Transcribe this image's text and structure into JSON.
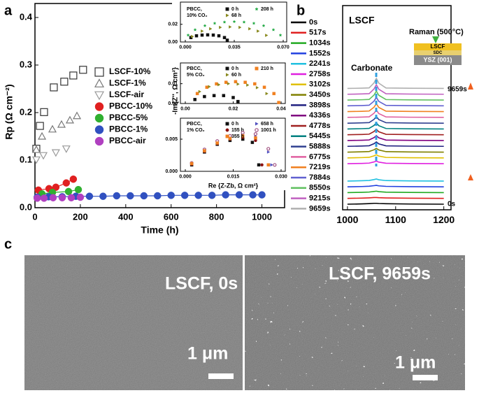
{
  "panel_labels": [
    "a",
    "b",
    "c"
  ],
  "sem": [
    {
      "caption": "LSCF, 0s",
      "scale_bar": "1 μm"
    },
    {
      "caption": "LSCF, 9659s",
      "scale_bar": "1 μm"
    }
  ],
  "chart_data": [
    {
      "type": "scatter",
      "xlabel": "Time (h)",
      "ylabel": "Rp (Ω cm⁻²)",
      "xlim": [
        0,
        1100
      ],
      "xticks": [
        0,
        200,
        400,
        600,
        800,
        1000
      ],
      "ylim": [
        0,
        0.4
      ],
      "yticks": [
        {
          "value": 0,
          "label": "0.0"
        },
        0.1,
        0.2,
        0.3,
        0.4
      ],
      "series": [
        {
          "name": "LSCF-10%",
          "color": "#333333",
          "marker": "square-open",
          "x": [
            6,
            22,
            40,
            83,
            129,
            169,
            212
          ],
          "values": [
            0.124,
            0.172,
            0.201,
            0.253,
            0.265,
            0.278,
            0.29
          ]
        },
        {
          "name": "LSCF-1%",
          "color": "#777777",
          "marker": "triangle-open",
          "x": [
            6,
            31,
            77,
            117,
            154,
            185
          ],
          "values": [
            0.122,
            0.15,
            0.165,
            0.175,
            0.184,
            0.193
          ]
        },
        {
          "name": "LSCF-air",
          "color": "#999999",
          "marker": "triangle-down-open",
          "x": [
            6,
            37,
            92,
            138
          ],
          "values": [
            0.101,
            0.11,
            0.116,
            0.124
          ]
        },
        {
          "name": "PBCC-10%",
          "color": "#e02020",
          "marker": "circle",
          "line": true,
          "x": [
            15,
            62,
            92,
            138,
            169
          ],
          "values": [
            0.037,
            0.04,
            0.043,
            0.052,
            0.06
          ]
        },
        {
          "name": "PBCC-5%",
          "color": "#30b030",
          "marker": "circle",
          "line": true,
          "x": [
            31,
            77,
            148,
            191
          ],
          "values": [
            0.029,
            0.032,
            0.034,
            0.038
          ]
        },
        {
          "name": "PBCC-1%",
          "color": "#3050c0",
          "marker": "circle",
          "line": true,
          "x": [
            10,
            60,
            120,
            180,
            240,
            300,
            360,
            420,
            480,
            540,
            600,
            660,
            720,
            780,
            840,
            900,
            960,
            1000
          ],
          "values": [
            0.022,
            0.023,
            0.023,
            0.024,
            0.024,
            0.024,
            0.025,
            0.025,
            0.025,
            0.025,
            0.026,
            0.026,
            0.026,
            0.026,
            0.027,
            0.027,
            0.027,
            0.027
          ]
        },
        {
          "name": "PBCC-air",
          "color": "#b040c0",
          "marker": "circle",
          "x": [
            10,
            40,
            80,
            120,
            160,
            200
          ],
          "values": [
            0.02,
            0.02,
            0.021,
            0.021,
            0.021,
            0.022
          ]
        }
      ]
    },
    {
      "type": "scatter",
      "legend_title": [
        "PBCC,",
        "10% CO₂"
      ],
      "xlim": [
        0,
        0.07
      ],
      "xticks": [
        {
          "value": 0,
          "label": "0.000"
        },
        0.035,
        {
          "value": 0.07,
          "label": "0.070"
        }
      ],
      "ylim": [
        0,
        0.038
      ],
      "yticks": [
        {
          "value": 0,
          "label": "0.00"
        },
        0.02
      ],
      "series": [
        {
          "name": "0 h",
          "color": "#111111",
          "marker": "square",
          "x": [
            0.004,
            0.008,
            0.012,
            0.016,
            0.02,
            0.024,
            0.028,
            0.03
          ],
          "values": [
            0.005,
            0.007,
            0.0078,
            0.008,
            0.0078,
            0.007,
            0.005,
            0.002
          ]
        },
        {
          "name": "208 h",
          "color": "#22aa44",
          "marker": "star",
          "x": [
            0.002,
            0.007,
            0.014,
            0.021,
            0.028,
            0.035,
            0.042,
            0.049,
            0.056,
            0.063,
            0.068
          ],
          "values": [
            0.0077,
            0.0138,
            0.0184,
            0.0211,
            0.0225,
            0.023,
            0.0225,
            0.0211,
            0.0184,
            0.0138,
            0.0077
          ]
        },
        {
          "name": "68 h",
          "color": "#8a8a20",
          "marker": "triangle-right",
          "x": [
            0.005,
            0.012,
            0.018,
            0.025,
            0.032,
            0.039,
            0.046,
            0.052,
            0.058
          ],
          "values": [
            0.0062,
            0.0123,
            0.0149,
            0.0165,
            0.017,
            0.0165,
            0.0149,
            0.0123,
            0.0075
          ]
        }
      ]
    },
    {
      "type": "scatter",
      "legend_title": [
        "PBCC,",
        "5% CO₂"
      ],
      "ylabel": "-Im{Z'', Ω cm²}",
      "xlim": [
        0,
        0.04
      ],
      "xticks": [
        {
          "value": 0,
          "label": "0.00"
        },
        0.02,
        0.04
      ],
      "ylim": [
        0,
        0.018
      ],
      "yticks": [
        {
          "value": 0,
          "label": "0.00"
        },
        0.01
      ],
      "series": [
        {
          "name": "0 h",
          "color": "#111111",
          "marker": "square",
          "x": [
            0.004,
            0.008,
            0.012,
            0.016,
            0.02,
            0.022
          ],
          "values": [
            0.002,
            0.0035,
            0.004,
            0.004,
            0.003,
            0.001
          ]
        },
        {
          "name": "210 h",
          "color": "#f08020",
          "marker": "square",
          "x": [
            0.005,
            0.009,
            0.013,
            0.017,
            0.021,
            0.025,
            0.029,
            0.033,
            0.037,
            0.039
          ],
          "values": [
            0.005,
            0.0082,
            0.0099,
            0.0107,
            0.011,
            0.0107,
            0.0099,
            0.0082,
            0.005,
            0.0005
          ]
        },
        {
          "name": "60 h",
          "color": "#8a8a20",
          "marker": "triangle-right",
          "x": [
            0.006,
            0.01,
            0.014,
            0.018,
            0.022,
            0.026,
            0.03,
            0.034
          ],
          "values": [
            0.006,
            0.0085,
            0.0095,
            0.01,
            0.0098,
            0.0093,
            0.008,
            0.005
          ]
        }
      ]
    },
    {
      "type": "scatter",
      "legend_title": [
        "PBCC,",
        "1% CO₂"
      ],
      "xlabel": "Re {Z-Zb, Ω cm²}",
      "xlim": [
        0,
        0.03
      ],
      "xticks": [
        {
          "value": 0,
          "label": "0.000"
        },
        0.015,
        {
          "value": 0.03,
          "label": "0.030"
        }
      ],
      "ylim": [
        0,
        0.0075
      ],
      "yticks": [
        {
          "value": 0,
          "label": "0.000"
        },
        0.005
      ],
      "series": [
        {
          "name": "0 h",
          "color": "#111111",
          "marker": "square",
          "x": [
            0.002,
            0.006,
            0.01,
            0.014,
            0.018,
            0.021,
            0.023
          ],
          "values": [
            0.001,
            0.003,
            0.0042,
            0.0048,
            0.005,
            0.0045,
            0.001
          ]
        },
        {
          "name": "658 h",
          "color": "#5050c0",
          "marker": "triangle-right",
          "x": [
            0.002,
            0.006,
            0.01,
            0.014,
            0.018,
            0.022,
            0.026,
            0.027
          ],
          "values": [
            0.0012,
            0.0032,
            0.0045,
            0.0052,
            0.0056,
            0.0054,
            0.003,
            0.001
          ]
        },
        {
          "name": "155 h",
          "color": "#8b1010",
          "marker": "circle",
          "x": [
            0.002,
            0.006,
            0.01,
            0.014,
            0.018,
            0.022,
            0.024
          ],
          "values": [
            0.0011,
            0.0031,
            0.0043,
            0.005,
            0.0053,
            0.0048,
            0.001
          ]
        },
        {
          "name": "1001 h",
          "color": "#a05080",
          "marker": "circle-open",
          "x": [
            0.002,
            0.006,
            0.01,
            0.014,
            0.018,
            0.022,
            0.026,
            0.028
          ],
          "values": [
            0.0013,
            0.0034,
            0.0047,
            0.0055,
            0.006,
            0.0058,
            0.0035,
            0.001
          ]
        },
        {
          "name": "355 h",
          "color": "#f08020",
          "marker": "square",
          "x": [
            0.002,
            0.006,
            0.01,
            0.014,
            0.018,
            0.022,
            0.026
          ],
          "values": [
            0.0012,
            0.0032,
            0.0044,
            0.0051,
            0.0055,
            0.0052,
            0.001
          ]
        }
      ]
    },
    {
      "type": "line",
      "title": "LSCF",
      "annotations": {
        "raman": "Raman (500°C)",
        "carbonate": "Carbonate",
        "layers": [
          "LSCF",
          "SDC",
          "YSZ (001)"
        ]
      },
      "xlim": [
        990,
        1215
      ],
      "xticks": [
        1000,
        1100,
        1200
      ],
      "x": [
        1000,
        1030,
        1045,
        1055,
        1060,
        1065,
        1080,
        1130,
        1200
      ],
      "series": [
        {
          "name": "0s",
          "color": "#000000",
          "values": [
            0,
            0.05,
            0.1,
            0.15,
            0.15,
            0.12,
            0.08,
            0.03,
            0
          ]
        },
        {
          "name": "517s",
          "color": "#e02020",
          "values": [
            1,
            1.05,
            1.1,
            1.15,
            1.15,
            1.12,
            1.08,
            1.03,
            1
          ]
        },
        {
          "name": "1034s",
          "color": "#22aa22",
          "values": [
            2,
            2.05,
            2.1,
            2.2,
            2.25,
            2.17,
            2.08,
            2.03,
            2
          ]
        },
        {
          "name": "1552s",
          "color": "#2040e0",
          "values": [
            3,
            3.05,
            3.1,
            3.2,
            3.25,
            3.17,
            3.08,
            3.03,
            3
          ]
        },
        {
          "name": "2241s",
          "color": "#20c0e0",
          "values": [
            4,
            4.05,
            4.1,
            4.25,
            4.35,
            4.22,
            4.08,
            4.03,
            4
          ]
        },
        {
          "name": "2758s",
          "color": "#e020e0",
          "values": [
            7,
            7.05,
            7.1,
            7.3,
            7.45,
            7.27,
            7.08,
            7.03,
            7
          ]
        },
        {
          "name": "3102s",
          "color": "#e0c000",
          "values": [
            8,
            8.05,
            8.1,
            8.35,
            8.55,
            8.32,
            8.08,
            8.03,
            8
          ]
        },
        {
          "name": "3450s",
          "color": "#808000",
          "values": [
            9,
            9.05,
            9.1,
            9.4,
            9.65,
            9.37,
            9.08,
            9.03,
            9
          ]
        },
        {
          "name": "3898s",
          "color": "#202080",
          "values": [
            10,
            10.05,
            10.1,
            10.45,
            10.75,
            10.42,
            10.08,
            10.03,
            10
          ]
        },
        {
          "name": "4336s",
          "color": "#800080",
          "values": [
            11,
            11.05,
            11.1,
            11.5,
            11.85,
            11.47,
            11.08,
            11.03,
            11
          ]
        },
        {
          "name": "4778s",
          "color": "#a02020",
          "values": [
            12,
            12.05,
            12.1,
            12.55,
            12.95,
            12.52,
            12.08,
            12.03,
            12
          ]
        },
        {
          "name": "5445s",
          "color": "#008080",
          "values": [
            13,
            13.05,
            13.1,
            13.6,
            14.05,
            13.57,
            13.08,
            13.03,
            13
          ]
        },
        {
          "name": "5888s",
          "color": "#304090",
          "values": [
            14,
            14.05,
            14.1,
            14.65,
            15.15,
            14.62,
            14.08,
            14.03,
            14
          ]
        },
        {
          "name": "6775s",
          "color": "#e060a0",
          "values": [
            15,
            15.05,
            15.1,
            15.7,
            16.25,
            15.67,
            15.08,
            15.03,
            15
          ]
        },
        {
          "name": "7219s",
          "color": "#f08020",
          "values": [
            16,
            16.05,
            16.1,
            16.75,
            17.35,
            16.72,
            16.08,
            16.03,
            16
          ]
        },
        {
          "name": "7884s",
          "color": "#6060d0",
          "values": [
            17,
            17.05,
            17.1,
            17.8,
            18.45,
            17.77,
            17.08,
            17.03,
            17
          ]
        },
        {
          "name": "8550s",
          "color": "#60c060",
          "values": [
            18,
            18.05,
            18.1,
            18.85,
            19.55,
            18.82,
            18.08,
            18.03,
            18
          ]
        },
        {
          "name": "9215s",
          "color": "#c060c0",
          "values": [
            19,
            19.05,
            19.1,
            19.9,
            20.65,
            19.87,
            19.08,
            19.03,
            19
          ]
        },
        {
          "name": "9659s",
          "color": "#b0b0b0",
          "values": [
            20,
            20.05,
            20.1,
            20.95,
            21.75,
            20.92,
            20.08,
            20.03,
            20
          ]
        }
      ]
    }
  ]
}
